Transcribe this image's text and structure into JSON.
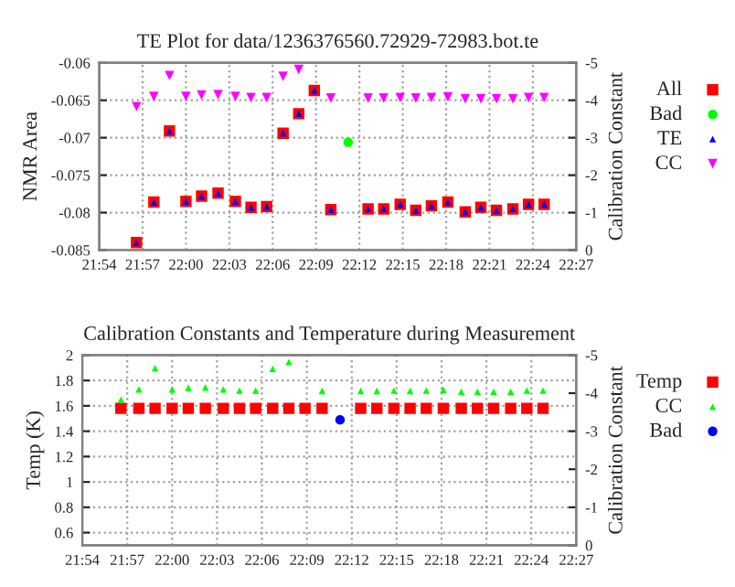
{
  "chart_data": [
    {
      "type": "scatter",
      "title": "TE Plot for data/1236376560.72929-72983.bot.te",
      "ylabel": "NMR Area",
      "y2label": "Calibration Constant",
      "x": [
        21.943,
        21.963,
        21.981,
        22.0,
        22.018,
        22.037,
        22.057,
        22.075,
        22.093,
        22.112,
        22.13,
        22.148,
        22.167,
        22.187,
        22.21,
        22.228,
        22.247,
        22.265,
        22.283,
        22.302,
        22.322,
        22.34,
        22.358,
        22.377,
        22.395,
        22.413
      ],
      "xlim": [
        21.9,
        22.45
      ],
      "xticks": [
        {
          "value": 21.9,
          "label": "21:54"
        },
        {
          "value": 21.95,
          "label": "21:57"
        },
        {
          "value": 22.0,
          "label": "22:00"
        },
        {
          "value": 22.05,
          "label": "22:03"
        },
        {
          "value": 22.1,
          "label": "22:06"
        },
        {
          "value": 22.15,
          "label": "22:09"
        },
        {
          "value": 22.2,
          "label": "22:12"
        },
        {
          "value": 22.25,
          "label": "22:15"
        },
        {
          "value": 22.3,
          "label": "22:18"
        },
        {
          "value": 22.35,
          "label": "22:21"
        },
        {
          "value": 22.4,
          "label": "22:24"
        },
        {
          "value": 22.45,
          "label": "22:27"
        }
      ],
      "ylim": [
        -0.085,
        -0.06
      ],
      "yticks": [
        -0.085,
        -0.08,
        -0.075,
        -0.07,
        -0.065,
        -0.06
      ],
      "y2lim": [
        0,
        -5
      ],
      "y2ticks": [
        0,
        -1,
        -2,
        -3,
        -4,
        -5
      ],
      "grid": true,
      "legend": "right",
      "series": [
        {
          "name": "All",
          "color": "#ff0000",
          "marker": "square",
          "values": [
            -0.084,
            -0.0786,
            -0.0691,
            -0.0785,
            -0.0778,
            -0.0774,
            -0.0785,
            -0.0793,
            -0.0792,
            -0.0694,
            -0.0668,
            -0.0637,
            -0.0796,
            null,
            -0.0795,
            -0.0795,
            -0.0789,
            -0.0797,
            -0.0791,
            -0.0786,
            -0.0799,
            -0.0793,
            -0.0797,
            -0.0795,
            -0.0789,
            -0.0789
          ]
        },
        {
          "name": "Bad",
          "color": "#00ff00",
          "marker": "circle",
          "values": [
            null,
            null,
            null,
            null,
            null,
            null,
            null,
            null,
            null,
            null,
            null,
            null,
            null,
            -0.0706,
            null,
            null,
            null,
            null,
            null,
            null,
            null,
            null,
            null,
            null,
            null,
            null
          ]
        },
        {
          "name": "TE",
          "color": "#0000ff",
          "marker": "triangle",
          "values": [
            -0.084,
            -0.0786,
            -0.0691,
            -0.0785,
            -0.0778,
            -0.0774,
            -0.0785,
            -0.0793,
            -0.0792,
            -0.0694,
            -0.0668,
            -0.0637,
            -0.0796,
            null,
            -0.0795,
            -0.0795,
            -0.0789,
            -0.0797,
            -0.0791,
            -0.0786,
            -0.0799,
            -0.0793,
            -0.0797,
            -0.0795,
            -0.0789,
            -0.0789
          ]
        },
        {
          "name": "CC",
          "color": "#ff00ff",
          "marker": "triangle_down",
          "axis": "y2",
          "values": [
            -3.83,
            -4.1,
            -4.66,
            -4.1,
            -4.14,
            -4.15,
            -4.1,
            -4.07,
            -4.07,
            -4.64,
            -4.82,
            null,
            -4.06,
            null,
            -4.06,
            -4.06,
            -4.07,
            -4.06,
            -4.07,
            -4.09,
            -4.04,
            -4.04,
            -4.04,
            -4.04,
            -4.07,
            -4.07
          ]
        }
      ]
    },
    {
      "type": "scatter",
      "title": "Calibration Constants and Temperature during Measurement",
      "ylabel": "Temp (K)",
      "y2label": "Calibration Constant",
      "x": [
        21.943,
        21.963,
        21.981,
        22.0,
        22.018,
        22.037,
        22.057,
        22.075,
        22.093,
        22.112,
        22.13,
        22.148,
        22.167,
        22.187,
        22.21,
        22.228,
        22.247,
        22.265,
        22.283,
        22.302,
        22.322,
        22.34,
        22.358,
        22.377,
        22.395,
        22.413
      ],
      "xlim": [
        21.9,
        22.45
      ],
      "xticks": [
        {
          "value": 21.9,
          "label": "21:54"
        },
        {
          "value": 21.95,
          "label": "21:57"
        },
        {
          "value": 22.0,
          "label": "22:00"
        },
        {
          "value": 22.05,
          "label": "22:03"
        },
        {
          "value": 22.1,
          "label": "22:06"
        },
        {
          "value": 22.15,
          "label": "22:09"
        },
        {
          "value": 22.2,
          "label": "22:12"
        },
        {
          "value": 22.25,
          "label": "22:15"
        },
        {
          "value": 22.3,
          "label": "22:18"
        },
        {
          "value": 22.35,
          "label": "22:21"
        },
        {
          "value": 22.4,
          "label": "22:24"
        },
        {
          "value": 22.45,
          "label": "22:27"
        }
      ],
      "ylim": [
        0.5,
        2
      ],
      "yticks": [
        0.6,
        0.8,
        1,
        1.2,
        1.4,
        1.6,
        1.8,
        2
      ],
      "y2lim": [
        0,
        -5
      ],
      "y2ticks": [
        0,
        -1,
        -2,
        -3,
        -4,
        -5
      ],
      "grid": true,
      "legend": "right",
      "series": [
        {
          "name": "Temp",
          "color": "#ff0000",
          "marker": "square",
          "values": [
            1.58,
            1.58,
            1.58,
            1.58,
            1.58,
            1.58,
            1.58,
            1.58,
            1.58,
            1.58,
            1.58,
            1.58,
            1.58,
            null,
            1.58,
            1.58,
            1.58,
            1.58,
            1.58,
            1.58,
            1.58,
            1.58,
            1.58,
            1.58,
            1.58,
            1.58
          ]
        },
        {
          "name": "CC",
          "color": "#00ff00",
          "marker": "triangle",
          "axis": "y2",
          "values": [
            -3.83,
            -4.1,
            -4.66,
            -4.1,
            -4.14,
            -4.15,
            -4.1,
            -4.07,
            -4.07,
            -4.64,
            -4.82,
            null,
            -4.06,
            null,
            -4.06,
            -4.06,
            -4.07,
            -4.06,
            -4.07,
            -4.09,
            -4.04,
            -4.04,
            -4.04,
            -4.04,
            -4.07,
            -4.07
          ]
        },
        {
          "name": "Bad",
          "color": "#0000ff",
          "marker": "circle",
          "values": [
            null,
            null,
            null,
            null,
            null,
            null,
            null,
            null,
            null,
            null,
            null,
            null,
            null,
            1.49,
            null,
            null,
            null,
            null,
            null,
            null,
            null,
            null,
            null,
            null,
            null,
            null
          ]
        }
      ]
    }
  ]
}
